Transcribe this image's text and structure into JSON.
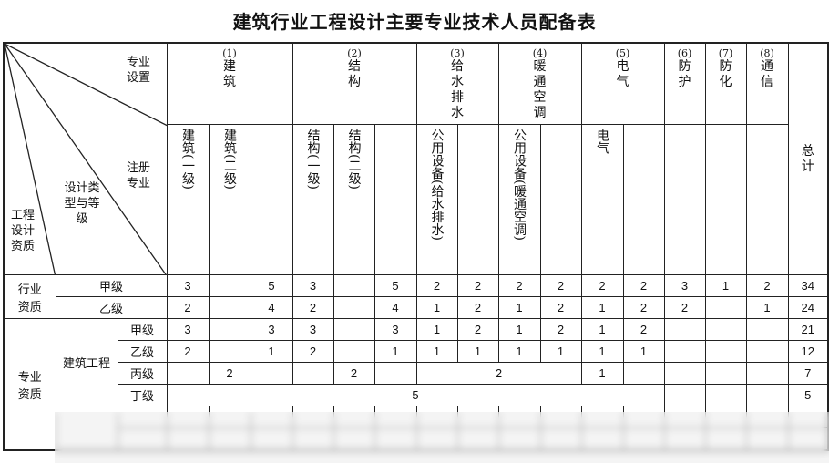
{
  "title": "建筑行业工程设计主要专业技术人员配备表",
  "corner": {
    "top": "专业设置",
    "mid": "注册专业",
    "lower": "设计类型与等级",
    "left": "工程设计资质"
  },
  "groups": [
    {
      "num": "(1)",
      "name": "建筑",
      "subs": [
        "建筑(一级)",
        "建筑(二级)",
        ""
      ]
    },
    {
      "num": "(2)",
      "name": "结构",
      "subs": [
        "结构(一级)",
        "结构(二级)",
        ""
      ]
    },
    {
      "num": "(3)",
      "name": "给水排水",
      "subs": [
        "公用设备(给水排水)",
        ""
      ]
    },
    {
      "num": "(4)",
      "name": "暖通空调",
      "subs": [
        "公用设备(暖通空调)",
        ""
      ]
    },
    {
      "num": "(5)",
      "name": "电气",
      "subs": [
        "电气",
        ""
      ]
    },
    {
      "num": "(6)",
      "name": "防护",
      "subs": [
        ""
      ]
    },
    {
      "num": "(7)",
      "name": "防化",
      "subs": [
        ""
      ]
    },
    {
      "num": "(8)",
      "name": "通信",
      "subs": [
        ""
      ]
    }
  ],
  "total_label": "总计",
  "industry": {
    "label": "行业资质",
    "rows": [
      {
        "level": "甲级",
        "values": [
          "3",
          "",
          "5",
          "3",
          "",
          "5",
          "2",
          "2",
          "2",
          "2",
          "2",
          "2",
          "3",
          "1",
          "2",
          "34"
        ]
      },
      {
        "level": "乙级",
        "values": [
          "2",
          "",
          "4",
          "2",
          "",
          "4",
          "1",
          "2",
          "1",
          "2",
          "1",
          "2",
          "2",
          "",
          "1",
          "24"
        ]
      }
    ]
  },
  "professional": {
    "label": "专业资质",
    "type": "建筑工程",
    "rows": [
      {
        "level": "甲级",
        "values": [
          "3",
          "",
          "3",
          "3",
          "",
          "3",
          "1",
          "2",
          "1",
          "2",
          "1",
          "2",
          "",
          "",
          "",
          "21"
        ]
      },
      {
        "level": "乙级",
        "values": [
          "2",
          "",
          "1",
          "2",
          "",
          "1",
          "1",
          "1",
          "1",
          "1",
          "1",
          "1",
          "",
          "",
          "",
          "12"
        ]
      },
      {
        "level": "丙级",
        "values": [
          "",
          "2",
          "",
          "",
          "2",
          "",
          "2",
          "1",
          "",
          "",
          "",
          "",
          "7"
        ]
      },
      {
        "level": "丁级",
        "values": [
          "5",
          "",
          "",
          "",
          "5"
        ]
      }
    ]
  }
}
